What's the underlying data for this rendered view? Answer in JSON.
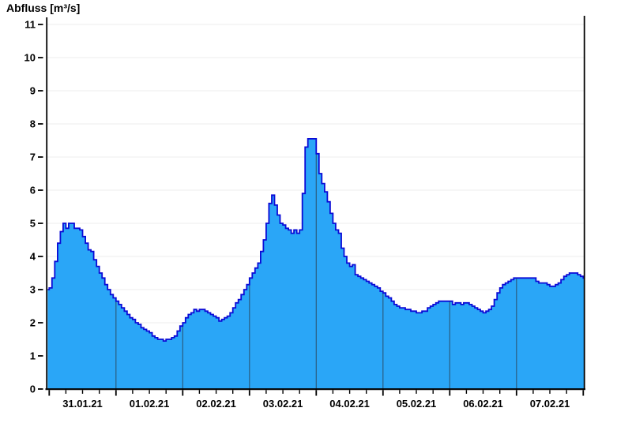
{
  "chart_data": {
    "type": "area",
    "title": "Abfluss [m³/s]",
    "ylabel": "Abfluss [m³/s]",
    "legend": "none",
    "grid": {
      "horizontal": true,
      "vertical_day_lines_inside_area": true
    },
    "y_axis": {
      "min": 0,
      "max": 11,
      "tick_step": 1,
      "ticks": [
        0,
        1,
        2,
        3,
        4,
        5,
        6,
        7,
        8,
        9,
        10,
        11
      ]
    },
    "x_axis": {
      "labels": [
        "31.01.21",
        "01.02.21",
        "02.02.21",
        "03.02.21",
        "04.02.21",
        "05.02.21",
        "06.02.21",
        "07.02.21"
      ],
      "days": 8,
      "minor_ticks_per_day": 4,
      "time_basis": "hours since 31.01.21 00:00",
      "start_offset_hours": -1.2,
      "end_offset_hours": 192.5
    },
    "series": [
      {
        "name": "Abfluss",
        "unit": "m³/s",
        "interpolation": "step-after",
        "points": [
          [
            -1.2,
            3.0
          ],
          [
            0,
            3.05
          ],
          [
            1,
            3.35
          ],
          [
            2,
            3.85
          ],
          [
            3,
            4.4
          ],
          [
            4,
            4.75
          ],
          [
            5,
            5.0
          ],
          [
            6,
            4.85
          ],
          [
            7,
            5.0
          ],
          [
            8,
            5.0
          ],
          [
            9,
            4.85
          ],
          [
            10,
            4.85
          ],
          [
            11,
            4.8
          ],
          [
            12,
            4.6
          ],
          [
            13,
            4.4
          ],
          [
            14,
            4.2
          ],
          [
            15,
            4.15
          ],
          [
            16,
            3.9
          ],
          [
            17,
            3.7
          ],
          [
            18,
            3.5
          ],
          [
            19,
            3.35
          ],
          [
            20,
            3.15
          ],
          [
            21,
            3.0
          ],
          [
            22,
            2.85
          ],
          [
            23,
            2.75
          ],
          [
            24,
            2.65
          ],
          [
            25,
            2.55
          ],
          [
            26,
            2.45
          ],
          [
            27,
            2.35
          ],
          [
            28,
            2.25
          ],
          [
            29,
            2.15
          ],
          [
            30,
            2.1
          ],
          [
            31,
            2.0
          ],
          [
            32,
            1.95
          ],
          [
            33,
            1.85
          ],
          [
            34,
            1.8
          ],
          [
            35,
            1.75
          ],
          [
            36,
            1.7
          ],
          [
            37,
            1.6
          ],
          [
            38,
            1.55
          ],
          [
            39,
            1.5
          ],
          [
            40,
            1.5
          ],
          [
            41,
            1.45
          ],
          [
            42,
            1.5
          ],
          [
            43,
            1.5
          ],
          [
            44,
            1.55
          ],
          [
            45,
            1.6
          ],
          [
            46,
            1.75
          ],
          [
            47,
            1.9
          ],
          [
            48,
            2.0
          ],
          [
            49,
            2.15
          ],
          [
            50,
            2.25
          ],
          [
            51,
            2.3
          ],
          [
            52,
            2.4
          ],
          [
            53,
            2.35
          ],
          [
            54,
            2.4
          ],
          [
            55,
            2.4
          ],
          [
            56,
            2.35
          ],
          [
            57,
            2.3
          ],
          [
            58,
            2.25
          ],
          [
            59,
            2.2
          ],
          [
            60,
            2.15
          ],
          [
            61,
            2.05
          ],
          [
            62,
            2.1
          ],
          [
            63,
            2.15
          ],
          [
            64,
            2.2
          ],
          [
            65,
            2.3
          ],
          [
            66,
            2.45
          ],
          [
            67,
            2.6
          ],
          [
            68,
            2.7
          ],
          [
            69,
            2.85
          ],
          [
            70,
            3.0
          ],
          [
            71,
            3.15
          ],
          [
            72,
            3.35
          ],
          [
            73,
            3.5
          ],
          [
            74,
            3.65
          ],
          [
            75,
            3.8
          ],
          [
            76,
            4.15
          ],
          [
            77,
            4.5
          ],
          [
            78,
            5.0
          ],
          [
            79,
            5.6
          ],
          [
            80,
            5.85
          ],
          [
            81,
            5.55
          ],
          [
            82,
            5.25
          ],
          [
            83,
            5.0
          ],
          [
            84,
            4.95
          ],
          [
            85,
            4.85
          ],
          [
            86,
            4.8
          ],
          [
            87,
            4.7
          ],
          [
            88,
            4.8
          ],
          [
            89,
            4.7
          ],
          [
            90,
            4.8
          ],
          [
            91,
            5.9
          ],
          [
            92,
            7.3
          ],
          [
            93,
            7.55
          ],
          [
            94,
            7.55
          ],
          [
            95,
            7.55
          ],
          [
            96,
            7.1
          ],
          [
            97,
            6.5
          ],
          [
            98,
            6.2
          ],
          [
            99,
            5.95
          ],
          [
            100,
            5.65
          ],
          [
            101,
            5.3
          ],
          [
            102,
            5.0
          ],
          [
            103,
            4.8
          ],
          [
            104,
            4.7
          ],
          [
            105,
            4.25
          ],
          [
            106,
            4.0
          ],
          [
            107,
            3.8
          ],
          [
            108,
            3.7
          ],
          [
            109,
            3.75
          ],
          [
            110,
            3.45
          ],
          [
            111,
            3.4
          ],
          [
            112,
            3.35
          ],
          [
            113,
            3.3
          ],
          [
            114,
            3.25
          ],
          [
            115,
            3.2
          ],
          [
            116,
            3.15
          ],
          [
            117,
            3.1
          ],
          [
            118,
            3.05
          ],
          [
            119,
            2.95
          ],
          [
            120,
            2.9
          ],
          [
            121,
            2.8
          ],
          [
            122,
            2.75
          ],
          [
            123,
            2.65
          ],
          [
            124,
            2.55
          ],
          [
            125,
            2.5
          ],
          [
            126,
            2.45
          ],
          [
            127,
            2.45
          ],
          [
            128,
            2.4
          ],
          [
            129,
            2.4
          ],
          [
            130,
            2.35
          ],
          [
            131,
            2.35
          ],
          [
            132,
            2.3
          ],
          [
            133,
            2.3
          ],
          [
            134,
            2.35
          ],
          [
            135,
            2.35
          ],
          [
            136,
            2.45
          ],
          [
            137,
            2.5
          ],
          [
            138,
            2.55
          ],
          [
            139,
            2.6
          ],
          [
            140,
            2.65
          ],
          [
            141,
            2.65
          ],
          [
            142,
            2.65
          ],
          [
            143,
            2.65
          ],
          [
            144,
            2.65
          ],
          [
            145,
            2.55
          ],
          [
            146,
            2.6
          ],
          [
            147,
            2.6
          ],
          [
            148,
            2.55
          ],
          [
            149,
            2.6
          ],
          [
            150,
            2.6
          ],
          [
            151,
            2.55
          ],
          [
            152,
            2.5
          ],
          [
            153,
            2.45
          ],
          [
            154,
            2.4
          ],
          [
            155,
            2.35
          ],
          [
            156,
            2.3
          ],
          [
            157,
            2.35
          ],
          [
            158,
            2.4
          ],
          [
            159,
            2.5
          ],
          [
            160,
            2.7
          ],
          [
            161,
            2.9
          ],
          [
            162,
            3.05
          ],
          [
            163,
            3.15
          ],
          [
            164,
            3.2
          ],
          [
            165,
            3.25
          ],
          [
            166,
            3.3
          ],
          [
            167,
            3.35
          ],
          [
            168,
            3.35
          ],
          [
            169,
            3.35
          ],
          [
            170,
            3.35
          ],
          [
            171,
            3.35
          ],
          [
            172,
            3.35
          ],
          [
            173,
            3.35
          ],
          [
            174,
            3.35
          ],
          [
            175,
            3.25
          ],
          [
            176,
            3.2
          ],
          [
            177,
            3.2
          ],
          [
            178,
            3.2
          ],
          [
            179,
            3.15
          ],
          [
            180,
            3.1
          ],
          [
            181,
            3.1
          ],
          [
            182,
            3.15
          ],
          [
            183,
            3.2
          ],
          [
            184,
            3.3
          ],
          [
            185,
            3.4
          ],
          [
            186,
            3.45
          ],
          [
            187,
            3.5
          ],
          [
            188,
            3.5
          ],
          [
            189,
            3.5
          ],
          [
            190,
            3.45
          ],
          [
            191,
            3.4
          ],
          [
            192,
            3.35
          ]
        ]
      }
    ]
  },
  "colors": {
    "background": "#ffffff",
    "area_fill": "#2aa6f7",
    "area_outline": "#0a0ad6",
    "day_line": "#2a5d80",
    "grid_line": "#ededed",
    "axis": "#000000",
    "text": "#000000"
  }
}
